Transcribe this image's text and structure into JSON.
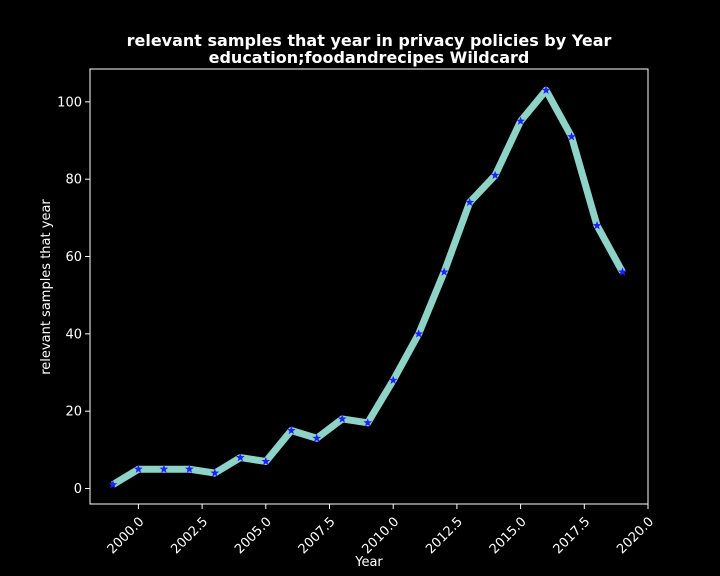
{
  "chart_data": {
    "type": "line",
    "title_line1": "relevant samples that year in privacy policies by Year",
    "title_line2": "education;foodandrecipes Wildcard",
    "xlabel": "Year",
    "ylabel": "relevant samples that year",
    "xlim": [
      1998.1,
      2020.0
    ],
    "ylim": [
      -4,
      108.5
    ],
    "x_ticks": [
      "2000.0",
      "2002.5",
      "2005.0",
      "2007.5",
      "2010.0",
      "2012.5",
      "2015.0",
      "2017.5",
      "2020.0"
    ],
    "y_ticks": [
      "0",
      "20",
      "40",
      "60",
      "80",
      "100"
    ],
    "series": [
      {
        "x": [
          1999,
          2000,
          2001,
          2002,
          2003,
          2004,
          2005,
          2006,
          2007,
          2008,
          2009,
          2010,
          2011,
          2012,
          2013,
          2014,
          2015,
          2016,
          2017,
          2018,
          2019
        ],
        "values": [
          1,
          5,
          5,
          5,
          4,
          8,
          7,
          15,
          13,
          18,
          17,
          28,
          40,
          56,
          74,
          81,
          95,
          103,
          91,
          68,
          56
        ],
        "line_color": "#8dd3c7",
        "marker_color": "#1f1fff",
        "marker": "star"
      }
    ],
    "grid": false,
    "legend": "none"
  },
  "colors": {
    "background": "#000000",
    "foreground": "#ffffff"
  }
}
